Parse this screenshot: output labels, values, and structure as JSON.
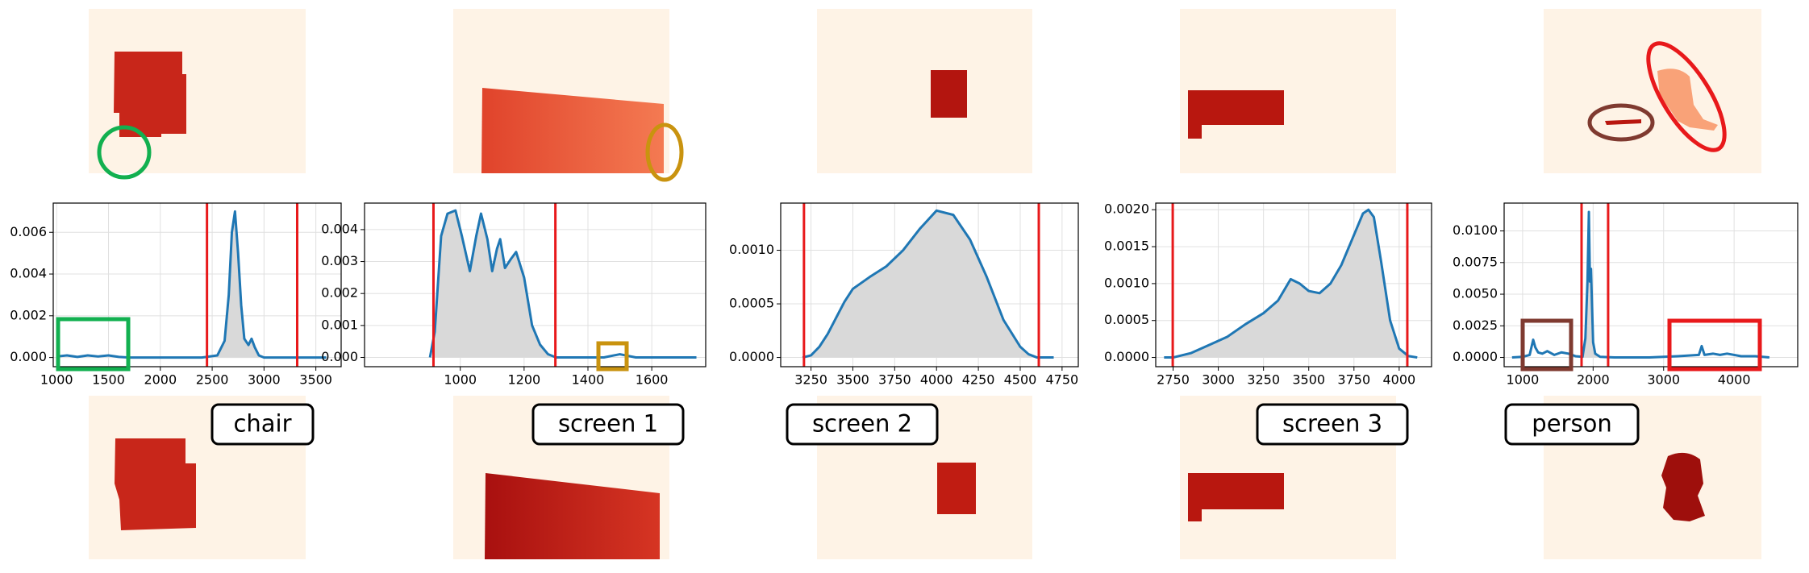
{
  "chart_data": [
    {
      "type": "area",
      "annotation": "chair",
      "color": "#1f77b4",
      "fill_color": "#d9d9d9",
      "vline_color": "#e8191b",
      "grid": true,
      "vlines": [
        2450,
        3320
      ],
      "x": [
        1000,
        1100,
        1200,
        1300,
        1400,
        1500,
        1600,
        1700,
        1800,
        2000,
        2200,
        2400,
        2550,
        2620,
        2660,
        2690,
        2720,
        2750,
        2780,
        2810,
        2850,
        2880,
        2910,
        2950,
        3000,
        3100,
        3300,
        3600
      ],
      "values": [
        5e-05,
        0.0001,
        3e-05,
        0.0001,
        5e-05,
        0.0001,
        3e-05,
        0,
        0,
        0,
        0,
        0,
        0.0001,
        0.0008,
        0.003,
        0.006,
        0.007,
        0.005,
        0.0025,
        0.0009,
        0.0006,
        0.0009,
        0.0005,
        0.0001,
        0,
        0,
        0,
        0
      ],
      "xlim": [
        967,
        3744
      ],
      "ylim": [
        -0.00044,
        0.0074
      ],
      "xticks": [
        1000,
        1500,
        2000,
        2500,
        3000,
        3500
      ],
      "yticks": [
        {
          "value": 0,
          "label": "0.000"
        },
        0.002,
        0.004,
        0.006
      ]
    },
    {
      "type": "area",
      "annotation": "screen 1",
      "color": "#1f77b4",
      "fill_color": "#d9d9d9",
      "vline_color": "#e8191b",
      "grid": true,
      "vlines": [
        916,
        1298
      ],
      "x": [
        905,
        920,
        940,
        960,
        985,
        1005,
        1030,
        1050,
        1065,
        1085,
        1100,
        1115,
        1125,
        1140,
        1160,
        1175,
        1200,
        1225,
        1250,
        1275,
        1300,
        1350,
        1450,
        1500,
        1550,
        1650,
        1740
      ],
      "values": [
        0,
        0.0008,
        0.0038,
        0.0045,
        0.0046,
        0.0038,
        0.0027,
        0.0038,
        0.0045,
        0.0037,
        0.0027,
        0.0034,
        0.0037,
        0.0028,
        0.0031,
        0.0033,
        0.0025,
        0.001,
        0.0004,
        0.0001,
        0,
        0,
        0,
        0.0001,
        0,
        0,
        0
      ],
      "xlim": [
        700,
        1769
      ],
      "ylim": [
        -0.00029,
        0.00483
      ],
      "xticks": [
        1000,
        1200,
        1400,
        1600
      ],
      "yticks": [
        {
          "value": 0,
          "label": "0.000"
        },
        0.001,
        0.002,
        0.003,
        0.004
      ]
    },
    {
      "type": "area",
      "annotation": "screen 2",
      "color": "#1f77b4",
      "fill_color": "#d9d9d9",
      "vline_color": "#e8191b",
      "grid": true,
      "vlines": [
        3208,
        4611
      ],
      "x": [
        3200,
        3250,
        3300,
        3350,
        3400,
        3450,
        3500,
        3600,
        3700,
        3800,
        3900,
        4000,
        4100,
        4200,
        4300,
        4400,
        4500,
        4550,
        4600,
        4700
      ],
      "values": [
        0,
        2e-05,
        0.0001,
        0.00022,
        0.00037,
        0.00052,
        0.00064,
        0.00075,
        0.00085,
        0.001,
        0.0012,
        0.00137,
        0.00133,
        0.0011,
        0.00075,
        0.00035,
        0.0001,
        3e-05,
        0,
        0
      ],
      "xlim": [
        3069,
        4847
      ],
      "ylim": [
        -8.6e-05,
        0.00144
      ],
      "xticks": [
        3250,
        3500,
        3750,
        4000,
        4250,
        4500,
        4750
      ],
      "yticks": [
        {
          "value": 0,
          "label": "0.0000"
        },
        0.0005,
        {
          "value": 0.001,
          "label": "0.0010"
        }
      ]
    },
    {
      "type": "area",
      "annotation": "screen 3",
      "color": "#1f77b4",
      "fill_color": "#d9d9d9",
      "vline_color": "#e8191b",
      "grid": true,
      "vlines": [
        2748,
        4045
      ],
      "x": [
        2700,
        2750,
        2850,
        2950,
        3050,
        3150,
        3250,
        3330,
        3400,
        3450,
        3500,
        3560,
        3620,
        3680,
        3740,
        3800,
        3830,
        3860,
        3900,
        3950,
        4000,
        4050,
        4100
      ],
      "values": [
        0,
        0,
        6e-05,
        0.00017,
        0.00028,
        0.00045,
        0.0006,
        0.00077,
        0.00106,
        0.001,
        0.0009,
        0.00087,
        0.001,
        0.00125,
        0.0016,
        0.00195,
        0.002,
        0.0019,
        0.0013,
        0.0005,
        0.00012,
        2e-05,
        0
      ],
      "xlim": [
        2654,
        4179
      ],
      "ylim": [
        -0.000125,
        0.00209
      ],
      "xticks": [
        2750,
        3000,
        3250,
        3500,
        3750,
        4000
      ],
      "yticks": [
        {
          "value": 0,
          "label": "0.0000"
        },
        0.0005,
        {
          "value": 0.001,
          "label": "0.0010"
        },
        0.0015,
        {
          "value": 0.002,
          "label": "0.0020"
        }
      ]
    },
    {
      "type": "area",
      "annotation": "person",
      "color": "#1f77b4",
      "fill_color": "#d9d9d9",
      "vline_color": "#e8191b",
      "grid": true,
      "vlines": [
        1836,
        2213
      ],
      "x": [
        850,
        1000,
        1100,
        1150,
        1180,
        1220,
        1280,
        1350,
        1450,
        1550,
        1650,
        1750,
        1850,
        1890,
        1920,
        1940,
        1955,
        1970,
        1985,
        2000,
        2030,
        2100,
        2300,
        2800,
        3200,
        3500,
        3540,
        3580,
        3700,
        3800,
        3900,
        4100,
        4300,
        4500
      ],
      "values": [
        0,
        5e-05,
        0.0002,
        0.0014,
        0.0008,
        0.0004,
        0.0003,
        0.0005,
        0.0002,
        0.0004,
        0.0003,
        0.0001,
        5e-05,
        0.0015,
        0.006,
        0.0115,
        0.006,
        0.007,
        0.004,
        0.0012,
        0.0003,
        5e-05,
        0,
        0,
        0.0001,
        0.0002,
        0.0009,
        0.0002,
        0.0003,
        0.0002,
        0.0003,
        0.0001,
        0.0001,
        0
      ],
      "xlim": [
        738,
        4902
      ],
      "ylim": [
        -0.00073,
        0.0122
      ],
      "xticks": [
        1000,
        2000,
        3000,
        4000
      ],
      "yticks": [
        {
          "value": 0,
          "label": "0.0000"
        },
        0.0025,
        {
          "value": 0.005,
          "label": "0.0050"
        },
        0.0075,
        {
          "value": 0.01,
          "label": "0.0100"
        }
      ]
    }
  ]
}
